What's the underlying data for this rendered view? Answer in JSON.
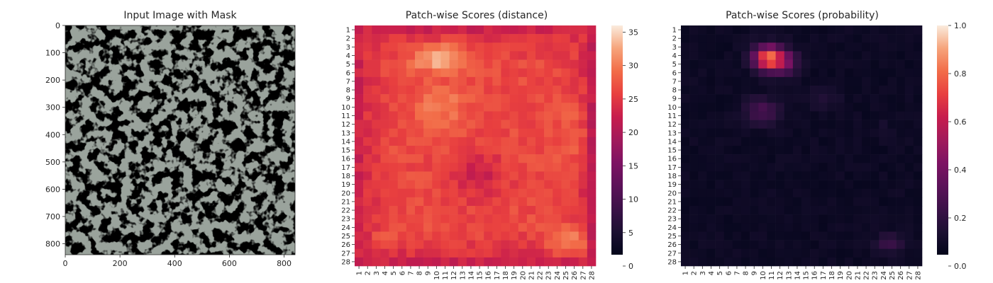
{
  "chart_data": [
    {
      "type": "image",
      "title": "Input Image with Mask",
      "x_ticks": [
        "0",
        "200",
        "400",
        "600",
        "800"
      ],
      "y_ticks": [
        "0",
        "100",
        "200",
        "300",
        "400",
        "500",
        "600",
        "700",
        "800"
      ],
      "x_range": [
        0,
        840
      ],
      "y_range": [
        0,
        840
      ],
      "description": "grayscale granite-like texture with dark speckles"
    },
    {
      "type": "heatmap",
      "title": "Patch-wise Scores (distance)",
      "grid_size": 28,
      "x_ticks": [
        "1",
        "2",
        "3",
        "4",
        "5",
        "6",
        "7",
        "8",
        "9",
        "10",
        "11",
        "12",
        "13",
        "14",
        "15",
        "16",
        "17",
        "18",
        "19",
        "20",
        "21",
        "22",
        "23",
        "24",
        "25",
        "26",
        "27",
        "28"
      ],
      "y_ticks": [
        "1",
        "2",
        "3",
        "4",
        "5",
        "6",
        "7",
        "8",
        "9",
        "10",
        "11",
        "12",
        "13",
        "14",
        "15",
        "16",
        "17",
        "18",
        "19",
        "20",
        "21",
        "22",
        "23",
        "24",
        "25",
        "26",
        "27",
        "28"
      ],
      "colorbar_ticks": [
        "0",
        "5",
        "10",
        "15",
        "20",
        "25",
        "30",
        "35"
      ],
      "vmin": 0,
      "vmax": 36,
      "colormap": "rocket"
    },
    {
      "type": "heatmap",
      "title": "Patch-wise Scores (probability)",
      "grid_size": 28,
      "x_ticks": [
        "1",
        "2",
        "3",
        "4",
        "5",
        "6",
        "7",
        "8",
        "9",
        "10",
        "11",
        "12",
        "13",
        "14",
        "15",
        "16",
        "17",
        "18",
        "19",
        "20",
        "21",
        "22",
        "23",
        "24",
        "25",
        "26",
        "27",
        "28"
      ],
      "y_ticks": [
        "1",
        "2",
        "3",
        "4",
        "5",
        "6",
        "7",
        "8",
        "9",
        "10",
        "11",
        "12",
        "13",
        "14",
        "15",
        "16",
        "17",
        "18",
        "19",
        "20",
        "21",
        "22",
        "23",
        "24",
        "25",
        "26",
        "27",
        "28"
      ],
      "colorbar_ticks": [
        "0.0",
        "0.2",
        "0.4",
        "0.6",
        "0.8",
        "1.0"
      ],
      "vmin": 0,
      "vmax": 1,
      "colormap": "rocket"
    }
  ]
}
